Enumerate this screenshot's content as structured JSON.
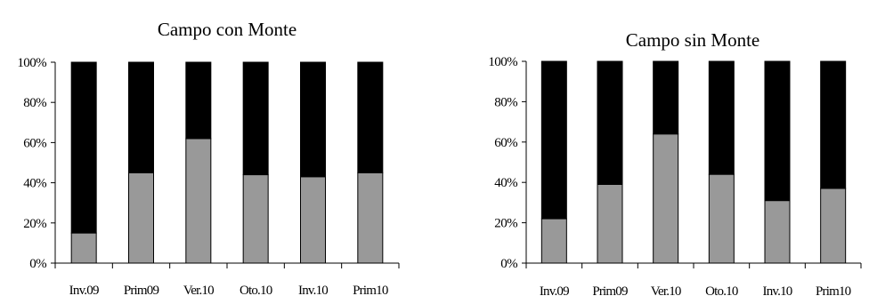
{
  "chart_data": [
    {
      "type": "bar",
      "stacked": true,
      "percent": true,
      "title": "Campo con Monte",
      "xlabel": "",
      "ylabel": "",
      "categories": [
        "Inv.09",
        "Prim09",
        "Ver.10",
        "Oto.10",
        "Inv.10",
        "Prim10"
      ],
      "series": [
        {
          "color": "#999999",
          "values": [
            15,
            45,
            62,
            44,
            43,
            45
          ]
        },
        {
          "color": "#000000",
          "values": [
            85,
            55,
            38,
            56,
            57,
            55
          ]
        }
      ],
      "ylim": [
        0,
        100
      ],
      "yticks": [
        "0%",
        "20%",
        "40%",
        "60%",
        "80%",
        "100%"
      ],
      "grid": false,
      "legend": "none"
    },
    {
      "type": "bar",
      "stacked": true,
      "percent": true,
      "title": "Campo sin Monte",
      "xlabel": "",
      "ylabel": "",
      "categories": [
        "Inv.09",
        "Prim09",
        "Ver.10",
        "Oto.10",
        "Inv.10",
        "Prim10"
      ],
      "series": [
        {
          "color": "#999999",
          "values": [
            22,
            39,
            64,
            44,
            31,
            37
          ]
        },
        {
          "color": "#000000",
          "values": [
            78,
            61,
            36,
            56,
            69,
            63
          ]
        }
      ],
      "ylim": [
        0,
        100
      ],
      "yticks": [
        "0%",
        "20%",
        "40%",
        "60%",
        "80%",
        "100%"
      ],
      "grid": false,
      "legend": "none"
    }
  ]
}
